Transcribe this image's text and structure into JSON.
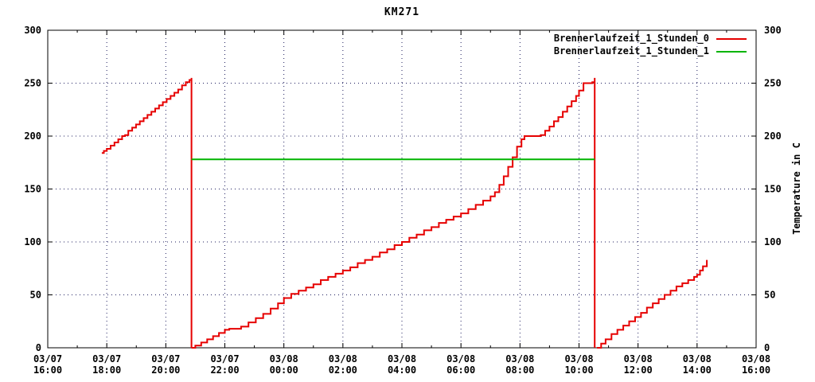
{
  "title": "KM271",
  "colors": {
    "series0": "#e60000",
    "series1": "#00b400",
    "grid": "#1c1c5e",
    "axis": "#000000",
    "background": "#ffffff"
  },
  "legend": {
    "entries": [
      {
        "label": "Brennerlaufzeit_1_Stunden_0",
        "color_key": "series0"
      },
      {
        "label": "Brennerlaufzeit_1_Stunden_1",
        "color_key": "series1"
      }
    ]
  },
  "y_axis": {
    "range": [
      0,
      300
    ],
    "ticks": [
      0,
      50,
      100,
      150,
      200,
      250,
      300
    ],
    "label_right": "Temperature in C"
  },
  "x_axis": {
    "range_hours": [
      0,
      24
    ],
    "major_every_hours": 2,
    "minor_every_hours": 1,
    "tick_labels": [
      {
        "date": "03/07",
        "time": "16:00"
      },
      {
        "date": "03/07",
        "time": "18:00"
      },
      {
        "date": "03/07",
        "time": "20:00"
      },
      {
        "date": "03/07",
        "time": "22:00"
      },
      {
        "date": "03/08",
        "time": "00:00"
      },
      {
        "date": "03/08",
        "time": "02:00"
      },
      {
        "date": "03/08",
        "time": "04:00"
      },
      {
        "date": "03/08",
        "time": "06:00"
      },
      {
        "date": "03/08",
        "time": "08:00"
      },
      {
        "date": "03/08",
        "time": "10:00"
      },
      {
        "date": "03/08",
        "time": "12:00"
      },
      {
        "date": "03/08",
        "time": "14:00"
      },
      {
        "date": "03/08",
        "time": "16:00"
      }
    ]
  },
  "chart_data": {
    "type": "line",
    "title": "KM271",
    "xlabel": "",
    "ylabel": "Temperature in C",
    "ylim": [
      0,
      300
    ],
    "x_unit": "hours since 03/07 16:00",
    "x_span_hours": 24,
    "grid": true,
    "legend_position": "top-right-inside",
    "series": [
      {
        "name": "Brennerlaufzeit_1_Stunden_0",
        "color_key": "series0",
        "style": "steps",
        "segments": [
          [
            [
              1.83,
              184
            ],
            [
              1.9,
              186
            ],
            [
              2.0,
              188
            ],
            [
              2.13,
              191
            ],
            [
              2.26,
              194
            ],
            [
              2.39,
              197
            ],
            [
              2.52,
              200
            ],
            [
              2.62,
              201
            ],
            [
              2.73,
              205
            ],
            [
              2.86,
              208
            ],
            [
              2.99,
              211
            ],
            [
              3.12,
              214
            ],
            [
              3.25,
              217
            ],
            [
              3.38,
              220
            ],
            [
              3.51,
              223
            ],
            [
              3.64,
              226
            ],
            [
              3.77,
              229
            ],
            [
              3.9,
              232
            ],
            [
              4.03,
              235
            ],
            [
              4.16,
              238
            ],
            [
              4.29,
              241
            ],
            [
              4.42,
              244
            ],
            [
              4.55,
              248
            ],
            [
              4.68,
              251
            ],
            [
              4.8,
              253
            ],
            [
              4.87,
              255
            ],
            [
              4.87,
              0
            ]
          ],
          [
            [
              4.87,
              0
            ],
            [
              5.0,
              2
            ],
            [
              5.2,
              5
            ],
            [
              5.4,
              8
            ],
            [
              5.6,
              11
            ],
            [
              5.8,
              14
            ],
            [
              6.0,
              17
            ],
            [
              6.15,
              18
            ],
            [
              6.55,
              20
            ],
            [
              6.8,
              24
            ],
            [
              7.05,
              28
            ],
            [
              7.3,
              32
            ],
            [
              7.55,
              37
            ],
            [
              7.8,
              42
            ],
            [
              8.0,
              47
            ],
            [
              8.25,
              51
            ],
            [
              8.5,
              54
            ],
            [
              8.75,
              57
            ],
            [
              9.0,
              60
            ],
            [
              9.25,
              64
            ],
            [
              9.5,
              67
            ],
            [
              9.75,
              70
            ],
            [
              10.0,
              73
            ],
            [
              10.25,
              76
            ],
            [
              10.5,
              80
            ],
            [
              10.75,
              83
            ],
            [
              11.0,
              86
            ],
            [
              11.25,
              90
            ],
            [
              11.5,
              93
            ],
            [
              11.75,
              97
            ],
            [
              12.0,
              100
            ],
            [
              12.25,
              104
            ],
            [
              12.5,
              107
            ],
            [
              12.75,
              111
            ],
            [
              13.0,
              114
            ],
            [
              13.25,
              118
            ],
            [
              13.5,
              121
            ],
            [
              13.75,
              124
            ],
            [
              14.0,
              127
            ],
            [
              14.25,
              131
            ],
            [
              14.5,
              135
            ],
            [
              14.75,
              139
            ],
            [
              15.0,
              143
            ],
            [
              15.15,
              147
            ],
            [
              15.3,
              154
            ],
            [
              15.45,
              162
            ],
            [
              15.6,
              171
            ],
            [
              15.75,
              180
            ],
            [
              15.9,
              190
            ],
            [
              16.05,
              197
            ],
            [
              16.15,
              200
            ],
            [
              16.45,
              200
            ],
            [
              16.7,
              201
            ],
            [
              16.85,
              205
            ],
            [
              17.0,
              209
            ],
            [
              17.15,
              214
            ],
            [
              17.3,
              218
            ],
            [
              17.45,
              223
            ],
            [
              17.6,
              228
            ],
            [
              17.75,
              233
            ],
            [
              17.9,
              238
            ],
            [
              18.0,
              243
            ],
            [
              18.15,
              250
            ],
            [
              18.45,
              251
            ],
            [
              18.53,
              255
            ],
            [
              18.53,
              0
            ]
          ],
          [
            [
              18.61,
              0
            ],
            [
              18.75,
              4
            ],
            [
              18.9,
              8
            ],
            [
              19.1,
              13
            ],
            [
              19.3,
              17
            ],
            [
              19.5,
              21
            ],
            [
              19.7,
              25
            ],
            [
              19.9,
              29
            ],
            [
              20.1,
              33
            ],
            [
              20.3,
              38
            ],
            [
              20.5,
              42
            ],
            [
              20.7,
              46
            ],
            [
              20.9,
              50
            ],
            [
              21.1,
              54
            ],
            [
              21.3,
              58
            ],
            [
              21.5,
              61
            ],
            [
              21.7,
              64
            ],
            [
              21.9,
              67
            ],
            [
              22.0,
              69
            ],
            [
              22.1,
              73
            ],
            [
              22.2,
              77
            ],
            [
              22.33,
              83
            ]
          ]
        ]
      },
      {
        "name": "Brennerlaufzeit_1_Stunden_1",
        "color_key": "series1",
        "style": "line",
        "segments": [
          [
            [
              4.87,
              178
            ],
            [
              18.53,
              178
            ]
          ]
        ]
      }
    ]
  }
}
